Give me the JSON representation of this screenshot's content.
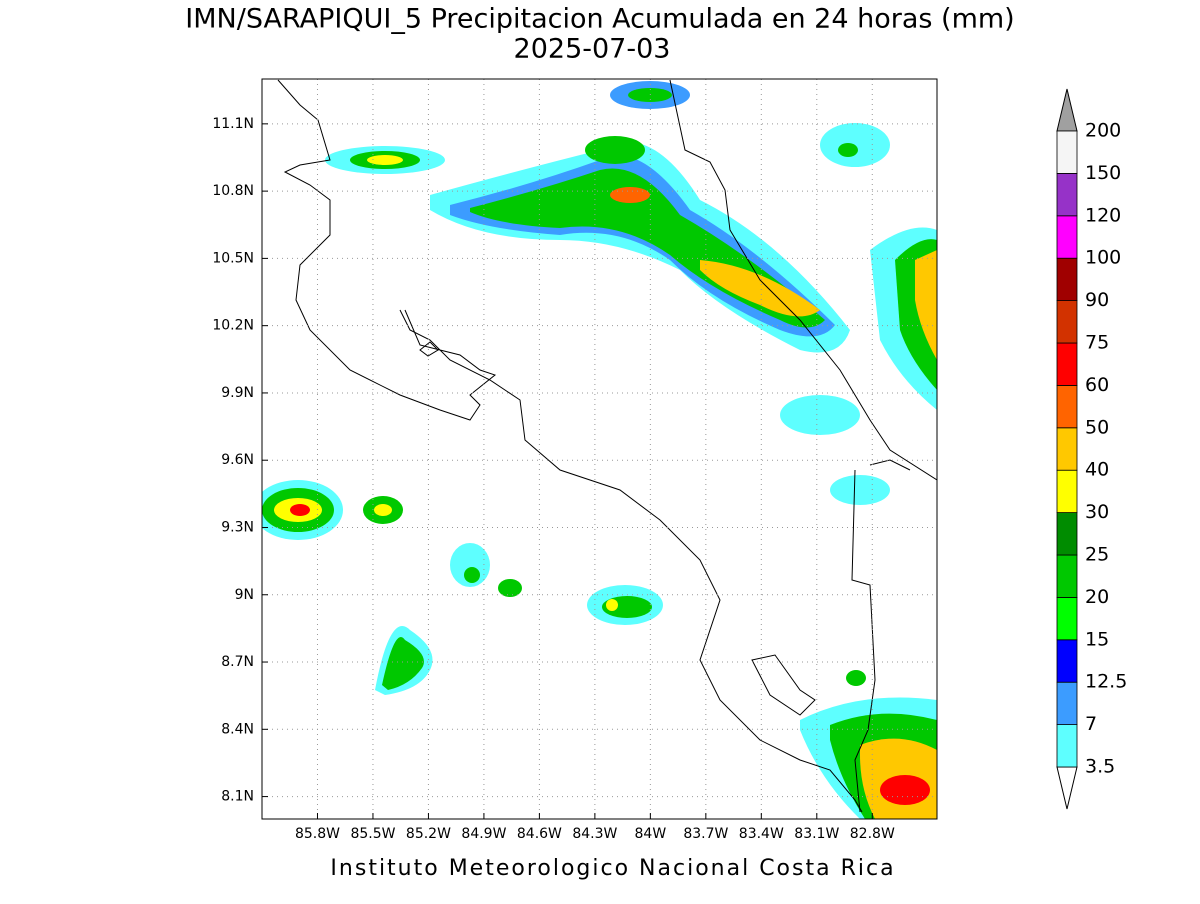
{
  "chart_data": {
    "type": "contour-map",
    "title": "IMN/SARAPIQUI_5 Precipitacion Acumulada en 24 horas (mm)",
    "subtitle": "2025-07-03",
    "footer": "Instituto Meteorologico Nacional Costa Rica",
    "xlim": [
      -86.1,
      -82.45
    ],
    "ylim": [
      8.0,
      11.3
    ],
    "xticks": [
      {
        "value": -85.8,
        "label": "85.8W"
      },
      {
        "value": -85.5,
        "label": "85.5W"
      },
      {
        "value": -85.2,
        "label": "85.2W"
      },
      {
        "value": -84.9,
        "label": "84.9W"
      },
      {
        "value": -84.6,
        "label": "84.6W"
      },
      {
        "value": -84.3,
        "label": "84.3W"
      },
      {
        "value": -84.0,
        "label": "84W"
      },
      {
        "value": -83.7,
        "label": "83.7W"
      },
      {
        "value": -83.4,
        "label": "83.4W"
      },
      {
        "value": -83.1,
        "label": "83.1W"
      },
      {
        "value": -82.8,
        "label": "82.8W"
      }
    ],
    "yticks": [
      {
        "value": 8.1,
        "label": "8.1N"
      },
      {
        "value": 8.4,
        "label": "8.4N"
      },
      {
        "value": 8.7,
        "label": "8.7N"
      },
      {
        "value": 9.0,
        "label": "9N"
      },
      {
        "value": 9.3,
        "label": "9.3N"
      },
      {
        "value": 9.6,
        "label": "9.6N"
      },
      {
        "value": 9.9,
        "label": "9.9N"
      },
      {
        "value": 10.2,
        "label": "10.2N"
      },
      {
        "value": 10.5,
        "label": "10.5N"
      },
      {
        "value": 10.8,
        "label": "10.8N"
      },
      {
        "value": 11.1,
        "label": "11.1N"
      }
    ],
    "grid": true,
    "levels": [
      3.5,
      7,
      12.5,
      15,
      20,
      25,
      30,
      40,
      50,
      60,
      75,
      90,
      100,
      120,
      150,
      200
    ],
    "colors": [
      "#5effff",
      "#3c9cff",
      "#0000ff",
      "#00ff00",
      "#00c800",
      "#008c00",
      "#ffff00",
      "#ffc800",
      "#ff6400",
      "#ff0000",
      "#d23200",
      "#a00000",
      "#ff00ff",
      "#9632c8",
      "#f5f5f5"
    ],
    "under_color": "#ffffff",
    "over_color": "#a0a0a0"
  }
}
